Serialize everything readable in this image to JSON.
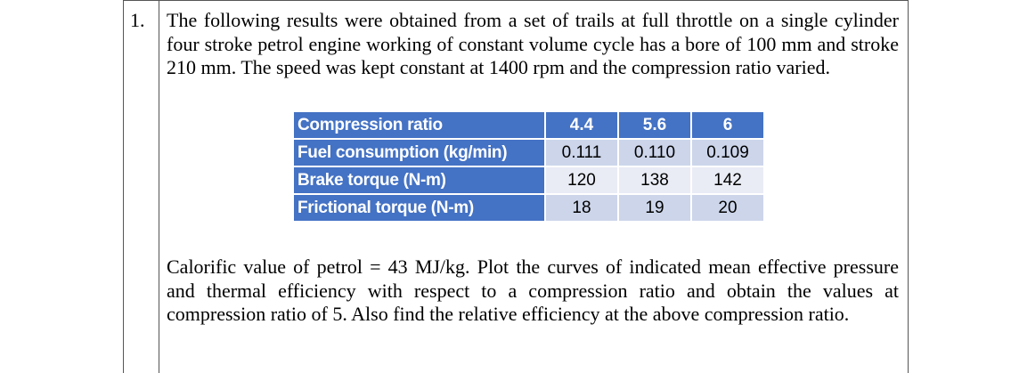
{
  "question": {
    "number": "1.",
    "intro": "The following results were obtained from a set of trails at full throttle on a single cylinder four stroke petrol engine working of constant volume cycle has a bore of 100 mm and stroke 210 mm. The speed was kept constant at 1400 rpm and the compression ratio varied.",
    "closing": "Calorific value of petrol = 43 MJ/kg. Plot the curves of indicated mean effective pressure and thermal efficiency with respect to a compression ratio and obtain the values at compression ratio of 5. Also find the relative efficiency at the above compression ratio."
  },
  "table": {
    "header": {
      "label": "Compression ratio",
      "values": [
        "4.4",
        "5.6",
        "6"
      ]
    },
    "rows": [
      {
        "label": "Fuel consumption (kg/min)",
        "values": [
          "0.111",
          "0.110",
          "0.109"
        ]
      },
      {
        "label": "Brake torque (N-m)",
        "values": [
          "120",
          "138",
          "142"
        ]
      },
      {
        "label": "Frictional torque (N-m)",
        "values": [
          "18",
          "19",
          "20"
        ]
      }
    ]
  },
  "colors": {
    "header_blue": "#4472c4",
    "row_dark": "#ccd5ea",
    "row_light": "#e9ecf5"
  }
}
